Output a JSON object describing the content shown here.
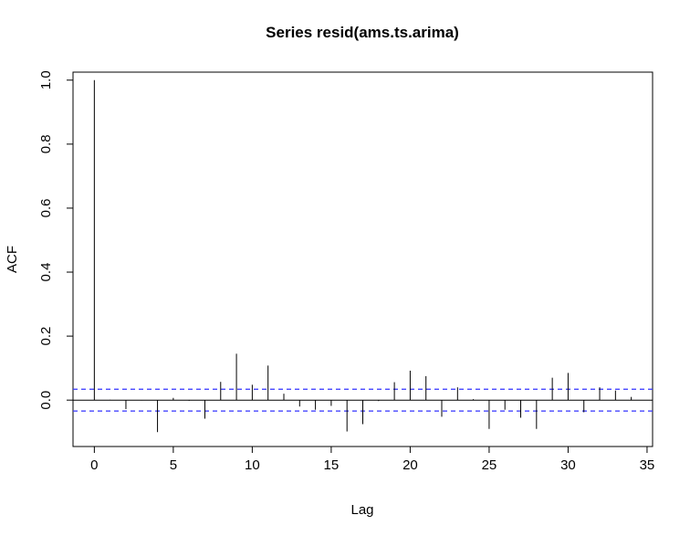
{
  "chart_data": {
    "type": "bar",
    "title": "Series  resid(ams.ts.arima)",
    "xlabel": "Lag",
    "ylabel": "ACF",
    "xlim": [
      -1.35,
      35.35
    ],
    "ylim": [
      -0.145,
      1.025
    ],
    "x_ticks": [
      0,
      5,
      10,
      15,
      20,
      25,
      30,
      35
    ],
    "x_tick_labels": [
      "0",
      "5",
      "10",
      "15",
      "20",
      "25",
      "30",
      "35"
    ],
    "y_ticks": [
      0.0,
      0.2,
      0.4,
      0.6,
      0.8,
      1.0
    ],
    "y_tick_labels": [
      "0.0",
      "0.2",
      "0.4",
      "0.6",
      "0.8",
      "1.0"
    ],
    "grid": false,
    "lags": [
      0,
      1,
      2,
      3,
      4,
      5,
      6,
      7,
      8,
      9,
      10,
      11,
      12,
      13,
      14,
      15,
      16,
      17,
      18,
      19,
      20,
      21,
      22,
      23,
      24,
      25,
      26,
      27,
      28,
      29,
      30,
      31,
      32,
      33,
      34
    ],
    "acf": [
      1.0,
      0.001,
      -0.028,
      -0.001,
      -0.1,
      0.007,
      -0.002,
      -0.058,
      0.057,
      0.145,
      0.048,
      0.108,
      0.02,
      -0.02,
      -0.03,
      -0.018,
      -0.098,
      -0.075,
      -0.003,
      0.056,
      0.092,
      0.075,
      -0.052,
      0.04,
      0.003,
      -0.09,
      -0.03,
      -0.055,
      -0.09,
      0.07,
      0.085,
      -0.038,
      0.04,
      0.03,
      0.01
    ],
    "conf_band": [
      0.034,
      -0.034
    ],
    "colors": {
      "bars": "#000000",
      "conf_band": "#3333ff",
      "zero_line": "#000000"
    }
  }
}
